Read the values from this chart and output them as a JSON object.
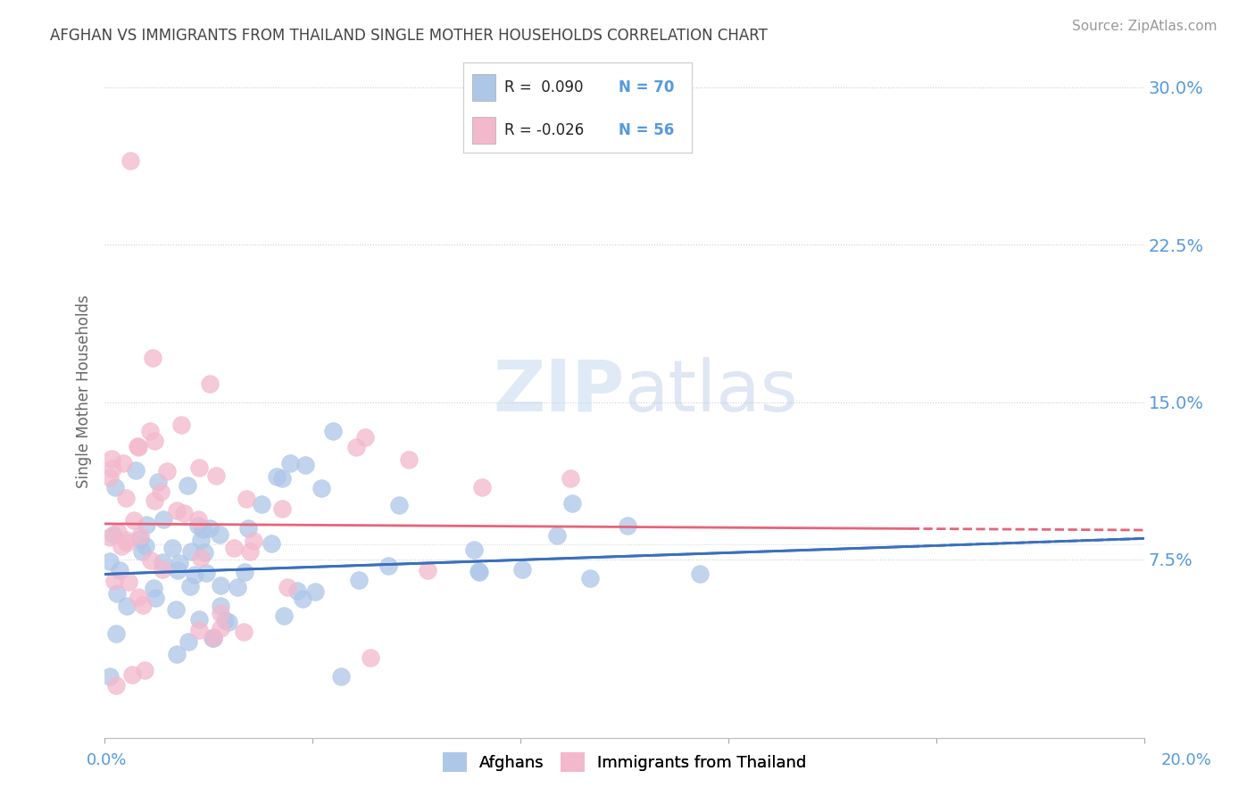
{
  "title": "AFGHAN VS IMMIGRANTS FROM THAILAND SINGLE MOTHER HOUSEHOLDS CORRELATION CHART",
  "source": "Source: ZipAtlas.com",
  "ylabel": "Single Mother Households",
  "yticks_labels": [
    "7.5%",
    "15.0%",
    "22.5%",
    "30.0%"
  ],
  "ytick_values": [
    0.075,
    0.15,
    0.225,
    0.3
  ],
  "xmin": 0.0,
  "xmax": 0.2,
  "ymin": -0.01,
  "ymax": 0.32,
  "blue_color": "#aec6e8",
  "pink_color": "#f4b8cc",
  "line_blue": "#3a6fbe",
  "line_pink": "#e8637a",
  "title_color": "#444444",
  "tick_color": "#5599dd",
  "watermark_color": "#c5d9f0",
  "af_line_start_y": 0.068,
  "af_line_end_y": 0.085,
  "th_line_start_y": 0.092,
  "th_line_end_y": 0.089,
  "legend_r1": "R =  0.090",
  "legend_n1": "N = 70",
  "legend_r2": "R = -0.026",
  "legend_n2": "N = 56"
}
